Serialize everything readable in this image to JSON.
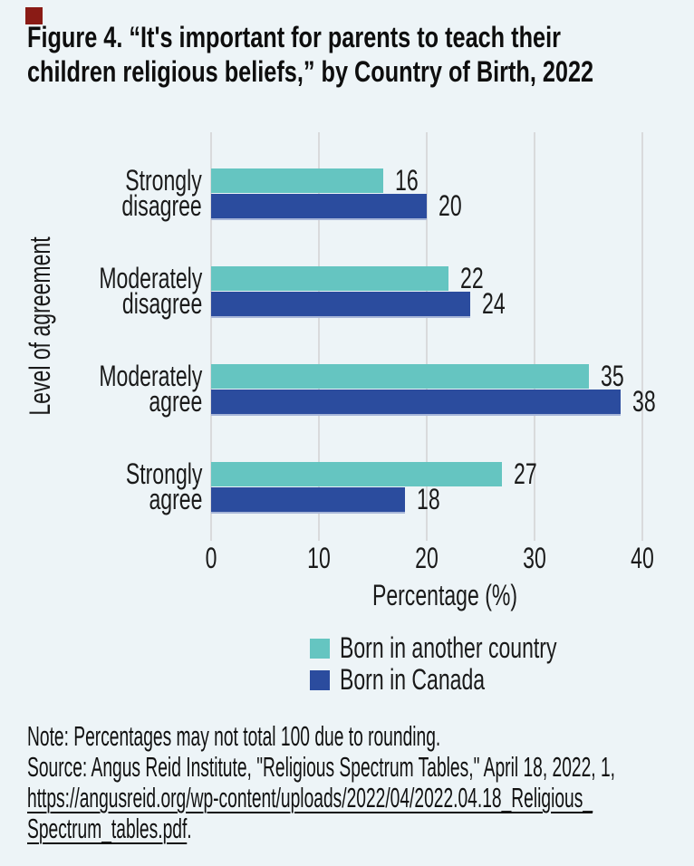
{
  "page": {
    "background_color": "#edf4f7",
    "accent_square_color": "#8a1b15",
    "text_color": "#161616"
  },
  "title_lines": [
    "Figure 4. “It's important for parents to teach their",
    "children religious beliefs,” by Country of Birth, 2022"
  ],
  "chart_data": {
    "type": "bar",
    "orientation": "horizontal",
    "title": "Figure 4. “It's important for parents to teach their children religious beliefs,” by Country of Birth, 2022",
    "categories": [
      "Strongly disagree",
      "Moderately disagree",
      "Moderately agree",
      "Strongly agree"
    ],
    "category_lines": [
      [
        "Strongly",
        "disagree"
      ],
      [
        "Moderately",
        "disagree"
      ],
      [
        "Moderately",
        "agree"
      ],
      [
        "Strongly",
        "agree"
      ]
    ],
    "series": [
      {
        "name": "Born in another country",
        "color": "#65c5c1",
        "values": [
          16,
          22,
          35,
          27
        ]
      },
      {
        "name": "Born in Canada",
        "color": "#2b4c9e",
        "values": [
          20,
          24,
          38,
          18
        ]
      }
    ],
    "xlabel": "Percentage (%)",
    "ylabel": "Level of agreement",
    "xlim": [
      0,
      40
    ],
    "xticks": [
      0,
      10,
      20,
      30,
      40
    ],
    "grid": true,
    "gridline_color": "#d9dadc",
    "legend_position": "bottom-center",
    "value_labels": true
  },
  "notes": {
    "note_line": "Note: Percentages may not total 100 due to rounding.",
    "source_line": "Source: Angus Reid Institute, \"Religious Spectrum Tables,\" April 18, 2022, 1,",
    "link_line1": "https://angusreid.org/wp-content/uploads/2022/04/2022.04.18_Religious_",
    "link_line2": "Spectrum_tables.pdf",
    "after_link": "."
  }
}
